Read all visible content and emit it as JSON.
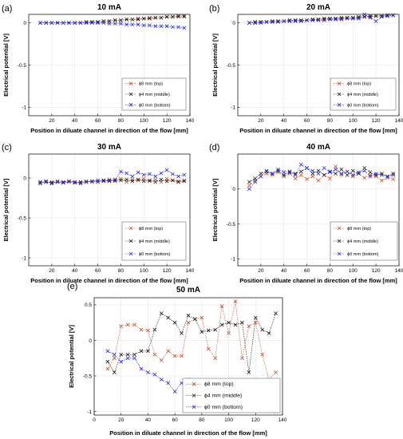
{
  "legend_labels": {
    "top": "ϕ8 mm (top)",
    "middle": "ϕ4 mm (middle)",
    "bottom": "ϕ0 mm (bottom)"
  },
  "colors": {
    "top": "#c0502a",
    "middle": "#1a1a1a",
    "bottom": "#2a2ae0",
    "grid": "#e6e6e6",
    "axis": "#000000"
  },
  "chart_data": [
    {
      "type": "line",
      "panel": "(a)",
      "title": "10 mA",
      "xlabel": "Position in diluate channel in direction of the flow [mm]",
      "ylabel": "Electrical potential [V]",
      "xlim": [
        0,
        140
      ],
      "ylim": [
        -1.1,
        0.1
      ],
      "xticks": [
        20,
        40,
        60,
        80,
        100,
        120,
        140
      ],
      "yticks": [
        -1,
        -0.5,
        0
      ],
      "grid": true,
      "legend_position": "bottom-right",
      "x": [
        10,
        15,
        20,
        25,
        30,
        35,
        40,
        45,
        50,
        55,
        60,
        65,
        70,
        75,
        80,
        85,
        90,
        95,
        100,
        105,
        110,
        115,
        120,
        125,
        130,
        135
      ],
      "series": [
        {
          "key": "top",
          "name": "ϕ8 mm (top)",
          "values": [
            0,
            0,
            0,
            0,
            0,
            0,
            0,
            0,
            0,
            0.01,
            0.01,
            0.02,
            0.02,
            0.03,
            0.03,
            0.04,
            0.04,
            0.05,
            0.05,
            0.06,
            0.06,
            0.06,
            0.07,
            0.07,
            0.07,
            0.07
          ]
        },
        {
          "key": "middle",
          "name": "ϕ4 mm (middle)",
          "values": [
            0,
            0,
            0,
            0,
            0,
            0,
            0,
            0,
            0.01,
            0.01,
            0.01,
            0.02,
            0.02,
            0.03,
            0.03,
            0.04,
            0.04,
            0.04,
            0.05,
            0.05,
            0.06,
            0.06,
            0.07,
            0.07,
            0.08,
            0.08
          ]
        },
        {
          "key": "bottom",
          "name": "ϕ0 mm (bottom)",
          "values": [
            0,
            0,
            0,
            0,
            0,
            0,
            0,
            0,
            0,
            0,
            0,
            0,
            -0.01,
            -0.01,
            -0.01,
            -0.02,
            -0.02,
            -0.02,
            -0.03,
            -0.03,
            -0.04,
            -0.04,
            -0.04,
            -0.05,
            -0.05,
            -0.06
          ]
        }
      ]
    },
    {
      "type": "line",
      "panel": "(b)",
      "title": "20 mA",
      "xlabel": "Position in diluate channel in direction of the flow [mm]",
      "ylabel": "Electrical potential [V]",
      "xlim": [
        0,
        140
      ],
      "ylim": [
        -1.1,
        0.1
      ],
      "xticks": [
        20,
        40,
        60,
        80,
        100,
        120,
        140
      ],
      "yticks": [
        -1,
        -0.5,
        0
      ],
      "grid": true,
      "legend_position": "bottom-right",
      "x": [
        10,
        15,
        20,
        25,
        30,
        35,
        40,
        45,
        50,
        55,
        60,
        65,
        70,
        75,
        80,
        85,
        90,
        95,
        100,
        105,
        110,
        115,
        120,
        125,
        130,
        135
      ],
      "series": [
        {
          "key": "top",
          "name": "ϕ8 mm (top)",
          "values": [
            0,
            0,
            0.01,
            0.01,
            0.01,
            0.02,
            0.02,
            0.02,
            0.03,
            0.03,
            0.03,
            0.04,
            0.04,
            0.04,
            0.05,
            0.05,
            0.05,
            0.06,
            0.06,
            0.06,
            0.07,
            0.07,
            0.08,
            0.08,
            0.08,
            0.09
          ]
        },
        {
          "key": "middle",
          "name": "ϕ4 mm (middle)",
          "values": [
            0,
            0.01,
            0.01,
            0.01,
            0.02,
            0.02,
            0.02,
            0.03,
            0.03,
            0.03,
            0.03,
            0.04,
            0.04,
            0.05,
            0.05,
            0.05,
            0.06,
            0.06,
            0.06,
            0.07,
            0.07,
            0.08,
            0.08,
            0.08,
            0.09,
            0.09
          ]
        },
        {
          "key": "bottom",
          "name": "ϕ0 mm (bottom)",
          "values": [
            0,
            0,
            0,
            0.01,
            0.01,
            0.01,
            0.02,
            0.02,
            0.02,
            0.02,
            0.03,
            0.03,
            0.03,
            0.03,
            0.04,
            0.04,
            0.04,
            0.05,
            0.05,
            0.05,
            0.1,
            0.06,
            0.02,
            0.07,
            0.08,
            0.09
          ]
        }
      ]
    },
    {
      "type": "line",
      "panel": "(c)",
      "title": "30 mA",
      "xlabel": "Position in diluate channel in direction of the flow [mm]",
      "ylabel": "Electrical potential [V]",
      "xlim": [
        0,
        140
      ],
      "ylim": [
        -1.1,
        0.3
      ],
      "xticks": [
        20,
        40,
        60,
        80,
        100,
        120,
        140
      ],
      "yticks": [
        -1,
        -0.5,
        0
      ],
      "grid": true,
      "legend_position": "bottom-right",
      "x": [
        10,
        15,
        20,
        25,
        30,
        35,
        40,
        45,
        50,
        55,
        60,
        65,
        70,
        75,
        80,
        85,
        90,
        95,
        100,
        105,
        110,
        115,
        120,
        125,
        130,
        135
      ],
      "series": [
        {
          "key": "top",
          "name": "ϕ8 mm (top)",
          "values": [
            -0.06,
            -0.05,
            -0.05,
            -0.04,
            -0.06,
            -0.05,
            -0.05,
            -0.06,
            -0.04,
            -0.05,
            -0.03,
            -0.03,
            -0.02,
            -0.04,
            -0.01,
            -0.05,
            -0.02,
            -0.03,
            -0.01,
            -0.04,
            -0.02,
            -0.05,
            -0.01,
            -0.03,
            -0.04,
            -0.03
          ]
        },
        {
          "key": "middle",
          "name": "ϕ4 mm (middle)",
          "values": [
            -0.05,
            -0.05,
            -0.06,
            -0.05,
            -0.05,
            -0.04,
            -0.06,
            -0.05,
            -0.05,
            -0.04,
            -0.05,
            -0.03,
            -0.04,
            -0.03,
            -0.03,
            -0.02,
            -0.04,
            -0.02,
            -0.04,
            -0.03,
            -0.05,
            -0.02,
            -0.04,
            -0.03,
            -0.05,
            -0.04
          ]
        },
        {
          "key": "bottom",
          "name": "ϕ0 mm (bottom)",
          "values": [
            -0.07,
            -0.04,
            -0.07,
            -0.05,
            -0.06,
            -0.04,
            -0.05,
            -0.07,
            -0.05,
            -0.04,
            -0.03,
            -0.04,
            -0.03,
            -0.02,
            0.08,
            0.06,
            0.02,
            0.07,
            0.04,
            0.05,
            0.02,
            0.06,
            0.1,
            0.05,
            0.02,
            0.04
          ]
        }
      ]
    },
    {
      "type": "line",
      "panel": "(d)",
      "title": "40 mA",
      "xlabel": "Position in diluate channel in direction of the flow [mm]",
      "ylabel": "Electrical potential [V]",
      "xlim": [
        0,
        140
      ],
      "ylim": [
        -1.1,
        0.5
      ],
      "xticks": [
        20,
        40,
        60,
        80,
        100,
        120,
        140
      ],
      "yticks": [
        -1,
        -0.5,
        0
      ],
      "grid": true,
      "legend_position": "bottom-right",
      "x": [
        10,
        15,
        20,
        25,
        30,
        35,
        40,
        45,
        50,
        55,
        60,
        65,
        70,
        75,
        80,
        85,
        90,
        95,
        100,
        105,
        110,
        115,
        120,
        125,
        130,
        135
      ],
      "series": [
        {
          "key": "top",
          "name": "ϕ8 mm (top)",
          "values": [
            0.05,
            0.12,
            0.18,
            0.22,
            0.2,
            0.24,
            0.18,
            0.22,
            0.15,
            0.2,
            0.14,
            0.18,
            0.12,
            0.2,
            0.15,
            0.32,
            0.2,
            0.25,
            0.18,
            0.22,
            0.16,
            0.2,
            0.18,
            0.12,
            0.16,
            0.14
          ]
        },
        {
          "key": "middle",
          "name": "ϕ4 mm (middle)",
          "values": [
            0.1,
            0.15,
            0.22,
            0.25,
            0.22,
            0.26,
            0.2,
            0.24,
            0.22,
            0.25,
            0.3,
            0.22,
            0.26,
            0.2,
            0.25,
            0.22,
            0.28,
            0.2,
            0.26,
            0.22,
            0.3,
            0.24,
            0.2,
            0.22,
            0.18,
            0.22
          ]
        },
        {
          "key": "bottom",
          "name": "ϕ0 mm (bottom)",
          "values": [
            0,
            0.1,
            0.18,
            0.26,
            0.22,
            0.28,
            0.24,
            0.25,
            0.2,
            0.35,
            0.3,
            0.26,
            0.22,
            0.3,
            0.24,
            0.28,
            0.22,
            0.25,
            0.2,
            0.24,
            0.26,
            0.18,
            0.22,
            0.2,
            0.18,
            0.2
          ]
        }
      ]
    },
    {
      "type": "line",
      "panel": "(e)",
      "title": "50 mA",
      "xlabel": "Position in diluate channel in direction of the flow [mm]",
      "ylabel": "Electrical potential [V]",
      "xlim": [
        0,
        140
      ],
      "ylim": [
        -1.05,
        0.6
      ],
      "xticks": [
        0,
        20,
        40,
        60,
        80,
        100,
        120,
        140
      ],
      "yticks": [
        -1,
        -0.5,
        0,
        0.5
      ],
      "grid": true,
      "legend_position": "bottom-right",
      "x": [
        10,
        15,
        20,
        25,
        30,
        35,
        40,
        45,
        50,
        55,
        60,
        65,
        70,
        75,
        80,
        85,
        90,
        95,
        100,
        105,
        110,
        115,
        120,
        125,
        130,
        135
      ],
      "series": [
        {
          "key": "top",
          "name": "ϕ8 mm (top)",
          "values": [
            -0.4,
            -0.25,
            0.2,
            0.22,
            0.22,
            0.15,
            0.14,
            -0.2,
            -0.28,
            -0.15,
            -0.22,
            -0.22,
            0.25,
            0.3,
            0.32,
            -0.12,
            -0.25,
            0.48,
            0.1,
            0.55,
            -0.25,
            0.2,
            0.25,
            -0.2,
            -0.55,
            -0.45
          ]
        },
        {
          "key": "middle",
          "name": "ϕ4 mm (middle)",
          "values": [
            -0.3,
            -0.45,
            -0.2,
            -0.2,
            -0.2,
            -0.15,
            -0.15,
            0.15,
            0.38,
            0.32,
            0.25,
            0.1,
            0.35,
            0.3,
            0.12,
            0.14,
            0.15,
            0.22,
            0.25,
            0.22,
            0.25,
            -0.45,
            0.32,
            0.15,
            0.1,
            0.38
          ]
        },
        {
          "key": "bottom",
          "name": "ϕ0 mm (bottom)",
          "values": [
            -0.15,
            -0.2,
            -0.3,
            -0.25,
            -0.25,
            -0.4,
            -0.45,
            -0.48,
            -0.55,
            -0.6,
            -0.72,
            -0.6,
            -0.55,
            -0.58,
            -0.62,
            -0.65,
            -0.75,
            -0.78,
            -0.68,
            -0.62,
            -0.65,
            -0.7,
            -0.62,
            -0.65,
            -0.68,
            -1.0
          ]
        }
      ]
    }
  ]
}
